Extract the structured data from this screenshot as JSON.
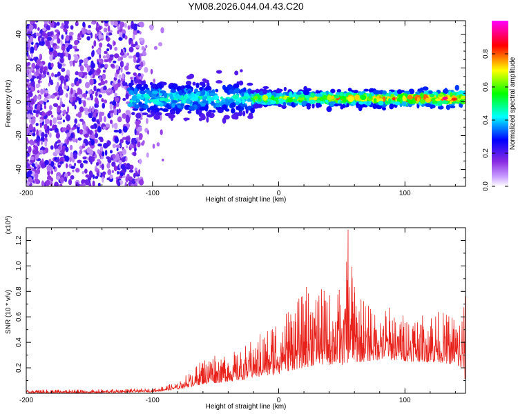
{
  "title": "YM08.2026.044.04.43.C20",
  "chart_data": [
    {
      "type": "heatmap",
      "xlabel": "Height of straight line (km)",
      "ylabel": "Frequency (Hz)",
      "xlim": [
        -200,
        148
      ],
      "ylim": [
        -50,
        48
      ],
      "xticks": [
        -200,
        -100,
        0,
        100
      ],
      "yticks": [
        -40,
        -20,
        0,
        20,
        40
      ],
      "colorbar": {
        "label": "Normalized spectral amplitude",
        "range": [
          0,
          1
        ],
        "ticks": [
          0.0,
          0.2,
          0.4,
          0.6,
          0.8
        ],
        "tick_labels": [
          "0.0",
          "0.2",
          "0.4",
          "0.6",
          "0.8"
        ],
        "colormap": [
          "#ffffff",
          "#9b30ff",
          "#0000ff",
          "#00ffff",
          "#00ff00",
          "#ffff00",
          "#ff0000",
          "#ff00ff"
        ]
      },
      "description_regions": [
        {
          "x_range": [
            -200,
            -90
          ],
          "freq_range": [
            -50,
            48
          ],
          "amplitude": [
            0.05,
            0.25
          ],
          "pattern": "scattered noise"
        },
        {
          "x_range": [
            -118,
            -20
          ],
          "freq_center": 2,
          "freq_spread": 10,
          "amplitude": [
            0.2,
            0.5
          ]
        },
        {
          "x_range": [
            -20,
            148
          ],
          "freq_center": 2,
          "freq_spread": 4,
          "amplitude": [
            0.3,
            0.95
          ]
        }
      ]
    },
    {
      "type": "line",
      "xlabel": "Height of straight line (km)",
      "ylabel": "SNR (10 * v/v)",
      "y_multiplier": "(x10^4)",
      "xlim": [
        -200,
        148
      ],
      "ylim": [
        0,
        1.3
      ],
      "xticks": [
        -200,
        -100,
        0,
        100
      ],
      "yticks": [
        0.2,
        0.4,
        0.6,
        0.8,
        1.0,
        1.2
      ],
      "ytick_labels": [
        "0.2",
        "0.4",
        "0.6",
        "0.8",
        "1.0",
        "1.2"
      ],
      "series": [
        {
          "name": "SNR",
          "color": "#e8221b",
          "envelope_x": [
            -200,
            -150,
            -100,
            -90,
            -80,
            -70,
            -60,
            -50,
            -40,
            -30,
            -20,
            -10,
            0,
            10,
            20,
            30,
            40,
            50,
            55,
            60,
            70,
            80,
            90,
            100,
            110,
            120,
            130,
            140,
            148
          ],
          "envelope_low": [
            0.0,
            0.0,
            0.01,
            0.02,
            0.03,
            0.05,
            0.07,
            0.08,
            0.09,
            0.1,
            0.12,
            0.13,
            0.15,
            0.18,
            0.2,
            0.22,
            0.22,
            0.22,
            0.24,
            0.24,
            0.25,
            0.26,
            0.26,
            0.25,
            0.25,
            0.24,
            0.24,
            0.22,
            0.1
          ],
          "envelope_high": [
            0.03,
            0.03,
            0.04,
            0.06,
            0.09,
            0.18,
            0.27,
            0.33,
            0.32,
            0.34,
            0.45,
            0.5,
            0.65,
            0.7,
            0.78,
            0.83,
            0.8,
            0.82,
            1.28,
            0.8,
            0.75,
            0.7,
            0.68,
            0.62,
            0.62,
            0.66,
            0.64,
            0.62,
            0.78
          ],
          "peaks": [
            {
              "x": 55,
              "y": 1.28
            },
            {
              "x": 58,
              "y": 0.99
            },
            {
              "x": 60,
              "y": 0.83
            },
            {
              "x": 22,
              "y": 0.83
            },
            {
              "x": 36,
              "y": 0.8
            },
            {
              "x": 48,
              "y": 0.81
            }
          ]
        }
      ]
    }
  ]
}
